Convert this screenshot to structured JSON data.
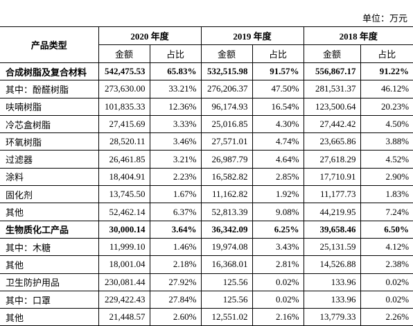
{
  "unit": "单位：万元",
  "table": {
    "header": {
      "category": "产品类型",
      "years": [
        "2020 年度",
        "2019 年度",
        "2018 年度"
      ],
      "subcols": [
        "金额",
        "占比"
      ]
    },
    "rows": [
      [
        "合成树脂及复合材料",
        "542,475.53",
        "65.83%",
        "532,515.98",
        "91.57%",
        "556,867.17",
        "91.22%"
      ],
      [
        "其中：酚醛树脂",
        "273,630.00",
        "33.21%",
        "276,206.37",
        "47.50%",
        "281,531.37",
        "46.12%"
      ],
      [
        "呋喃树脂",
        "101,835.33",
        "12.36%",
        "96,174.93",
        "16.54%",
        "123,500.64",
        "20.23%"
      ],
      [
        "冷芯盒树脂",
        "27,415.69",
        "3.33%",
        "25,016.85",
        "4.30%",
        "27,442.42",
        "4.50%"
      ],
      [
        "环氧树脂",
        "28,520.11",
        "3.46%",
        "27,571.01",
        "4.74%",
        "23,665.86",
        "3.88%"
      ],
      [
        "过滤器",
        "26,461.85",
        "3.21%",
        "26,987.79",
        "4.64%",
        "27,618.29",
        "4.52%"
      ],
      [
        "涂料",
        "18,404.91",
        "2.23%",
        "16,582.82",
        "2.85%",
        "17,710.91",
        "2.90%"
      ],
      [
        "固化剂",
        "13,745.50",
        "1.67%",
        "11,162.82",
        "1.92%",
        "11,177.73",
        "1.83%"
      ],
      [
        "其他",
        "52,462.14",
        "6.37%",
        "52,813.39",
        "9.08%",
        "44,219.95",
        "7.24%"
      ],
      [
        "生物质化工产品",
        "30,000.14",
        "3.64%",
        "36,342.09",
        "6.25%",
        "39,658.46",
        "6.50%"
      ],
      [
        "其中：木糖",
        "11,999.10",
        "1.46%",
        "19,974.08",
        "3.43%",
        "25,131.59",
        "4.12%"
      ],
      [
        "其他",
        "18,001.04",
        "2.18%",
        "16,368.01",
        "2.81%",
        "14,526.88",
        "2.38%"
      ],
      [
        "卫生防护用品",
        "230,081.44",
        "27.92%",
        "125.56",
        "0.02%",
        "133.96",
        "0.02%"
      ],
      [
        "其中：口罩",
        "229,422.43",
        "27.84%",
        "125.56",
        "0.02%",
        "133.96",
        "0.02%"
      ],
      [
        "其他",
        "21,448.57",
        "2.60%",
        "12,551.02",
        "2.16%",
        "13,779.33",
        "2.26%"
      ]
    ]
  }
}
